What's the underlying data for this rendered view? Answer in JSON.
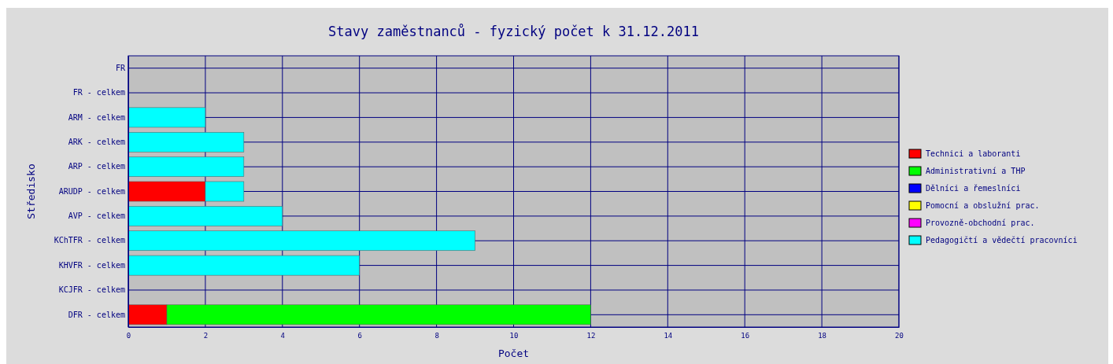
{
  "chart_data": {
    "type": "bar",
    "orientation": "horizontal",
    "stacked": true,
    "title": "Stavy zaměstnanců - fyzický počet k 31.12.2011",
    "xlabel": "Počet",
    "ylabel": "Středisko",
    "categories": [
      "FR",
      "FR - celkem",
      "ARM - celkem",
      "ARK - celkem",
      "ARP - celkem",
      "ARUDP - celkem",
      "AVP - celkem",
      "KChTFR - celkem",
      "KHVFR - celkem",
      "KCJFR - celkem",
      "DFR - celkem"
    ],
    "series": [
      {
        "name": "Technici a laboranti",
        "color": "#ff0000",
        "values": [
          0,
          0,
          0,
          0,
          0,
          2,
          0,
          0,
          0,
          0,
          1
        ]
      },
      {
        "name": "Administrativní a THP",
        "color": "#00ff00",
        "values": [
          0,
          0,
          0,
          0,
          0,
          0,
          0,
          0,
          0,
          0,
          11
        ]
      },
      {
        "name": "Dělníci a řemeslníci",
        "color": "#0000ff",
        "values": [
          0,
          0,
          0,
          0,
          0,
          0,
          0,
          0,
          0,
          0,
          0
        ]
      },
      {
        "name": "Pomocní a obslužní prac.",
        "color": "#ffff00",
        "values": [
          0,
          0,
          0,
          0,
          0,
          0,
          0,
          0,
          0,
          0,
          0
        ]
      },
      {
        "name": "Provozně-obchodní prac.",
        "color": "#ff00ff",
        "values": [
          0,
          0,
          0,
          0,
          0,
          0,
          0,
          0,
          0,
          0,
          0
        ]
      },
      {
        "name": "Pedagogičtí a vědečtí pracovníci",
        "color": "#00ffff",
        "values": [
          0,
          0,
          2,
          3,
          3,
          1,
          4,
          9,
          6,
          0,
          0
        ]
      }
    ],
    "xlim": [
      0,
      20
    ],
    "xticks": [
      0,
      2,
      4,
      6,
      8,
      10,
      12,
      14,
      16,
      18,
      20
    ],
    "grid": true,
    "legend": "right"
  }
}
